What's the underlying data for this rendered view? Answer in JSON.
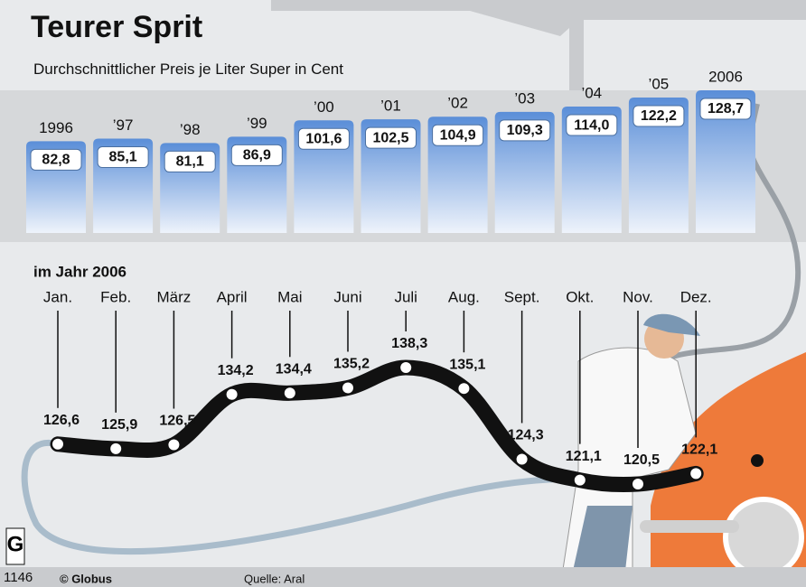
{
  "title": "Teurer Sprit",
  "credit": "© Globus",
  "source": "Quelle: Aral",
  "id": "1146",
  "chart_data": [
    {
      "type": "bar",
      "subtitle": "Durchschnittlicher Preis je Liter Super in Cent",
      "categories": [
        "1996",
        "’97",
        "’98",
        "’99",
        "’00",
        "’01",
        "’02",
        "’03",
        "’04",
        "’05",
        "2006"
      ],
      "values": [
        82.8,
        85.1,
        81.1,
        86.9,
        101.6,
        102.5,
        104.9,
        109.3,
        114.0,
        122.2,
        128.7
      ],
      "value_labels": [
        "82,8",
        "85,1",
        "81,1",
        "86,9",
        "101,6",
        "102,5",
        "104,9",
        "109,3",
        "114,0",
        "122,2",
        "128,7"
      ],
      "color": "#5a8ed8"
    },
    {
      "type": "line",
      "subtitle": "im Jahr 2006",
      "categories": [
        "Jan.",
        "Feb.",
        "März",
        "April",
        "Mai",
        "Juni",
        "Juli",
        "Aug.",
        "Sept.",
        "Okt.",
        "Nov.",
        "Dez."
      ],
      "values": [
        126.6,
        125.9,
        126.5,
        134.2,
        134.4,
        135.2,
        138.3,
        135.1,
        124.3,
        121.1,
        120.5,
        122.1
      ],
      "value_labels": [
        "126,6",
        "125,9",
        "126,5",
        "134,2",
        "134,4",
        "135,2",
        "138,3",
        "135,1",
        "124,3",
        "121,1",
        "120,5",
        "122,1"
      ],
      "color": "#111111"
    }
  ]
}
